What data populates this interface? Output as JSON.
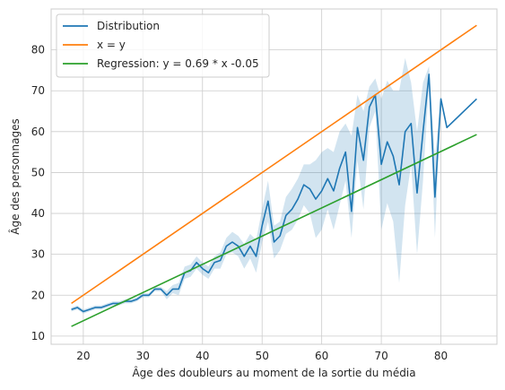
{
  "chart_data": {
    "type": "line",
    "xlabel": "Âge des doubleurs au moment de la sortie du média",
    "ylabel": "Âge des personnages",
    "xlim": [
      14.6,
      89.4
    ],
    "ylim": [
      8.0,
      90.0
    ],
    "xticks": [
      20,
      30,
      40,
      50,
      60,
      70,
      80
    ],
    "yticks": [
      10,
      20,
      30,
      40,
      50,
      60,
      70,
      80
    ],
    "grid": true,
    "legend": {
      "position": "top-left"
    },
    "series": [
      {
        "name": "Distribution",
        "color": "#1f77b4",
        "x": [
          18,
          19,
          20,
          21,
          22,
          23,
          24,
          25,
          26,
          27,
          28,
          29,
          30,
          31,
          32,
          33,
          34,
          35,
          36,
          37,
          38,
          39,
          40,
          41,
          42,
          43,
          44,
          45,
          46,
          47,
          48,
          49,
          50,
          51,
          52,
          53,
          54,
          55,
          56,
          57,
          58,
          59,
          60,
          61,
          62,
          63,
          64,
          65,
          66,
          67,
          68,
          69,
          70,
          71,
          72,
          73,
          74,
          75,
          76,
          77,
          78,
          79,
          80,
          81,
          86
        ],
        "y": [
          16.5,
          17.0,
          16.0,
          16.5,
          17.0,
          17.0,
          17.5,
          18.0,
          18.0,
          18.5,
          18.5,
          19.0,
          20.0,
          20.0,
          21.5,
          21.5,
          20.0,
          21.5,
          21.5,
          25.5,
          26.0,
          28.0,
          26.5,
          25.5,
          28.0,
          28.5,
          32.0,
          33.0,
          32.0,
          29.5,
          32.0,
          29.5,
          37.0,
          43.0,
          33.0,
          34.5,
          39.5,
          41.0,
          43.5,
          47.0,
          46.0,
          43.5,
          45.5,
          48.5,
          45.5,
          51.0,
          55.0,
          40.5,
          61.0,
          53.0,
          66.0,
          69.0,
          52.0,
          57.5,
          54.0,
          47.0,
          60.0,
          62.0,
          45.0,
          60.0,
          74.0,
          44.0,
          68.0,
          61.0,
          68.0
        ],
        "band_upper": [
          17.0,
          17.5,
          16.5,
          17.0,
          17.5,
          17.5,
          18.0,
          18.5,
          18.5,
          19.0,
          19.0,
          19.5,
          20.5,
          20.5,
          22.0,
          22.0,
          21.0,
          22.5,
          23.0,
          27.0,
          27.5,
          29.5,
          28.0,
          27.0,
          29.5,
          30.5,
          34.0,
          35.5,
          34.5,
          32.5,
          35.0,
          33.5,
          41.0,
          48.0,
          37.0,
          38.0,
          44.0,
          46.0,
          48.5,
          52.0,
          52.0,
          53.0,
          55.0,
          56.0,
          55.0,
          60.0,
          62.0,
          59.0,
          69.0,
          65.0,
          71.0,
          73.0,
          68.0,
          72.5,
          70.0,
          70.0,
          78.0,
          72.0,
          60.0,
          72.0,
          76.0,
          54.0,
          68.0,
          61.0,
          68.0
        ],
        "band_lower": [
          16.0,
          16.5,
          15.5,
          16.0,
          16.5,
          16.5,
          17.0,
          17.5,
          17.5,
          18.0,
          18.0,
          18.5,
          19.5,
          19.5,
          21.0,
          21.0,
          19.0,
          20.5,
          20.0,
          24.0,
          24.5,
          26.5,
          25.0,
          24.0,
          26.5,
          26.5,
          30.0,
          30.5,
          29.5,
          26.5,
          29.0,
          25.5,
          33.0,
          38.0,
          29.0,
          31.0,
          35.0,
          36.0,
          38.5,
          42.0,
          40.0,
          34.0,
          36.0,
          41.0,
          36.0,
          42.0,
          48.0,
          34.0,
          53.0,
          41.0,
          61.0,
          65.0,
          36.0,
          42.5,
          38.0,
          23.0,
          42.0,
          52.0,
          30.0,
          48.0,
          72.0,
          34.0,
          68.0,
          61.0,
          68.0
        ]
      },
      {
        "name": "x = y",
        "color": "#ff7f0e",
        "x": [
          18,
          86
        ],
        "y": [
          18,
          86
        ]
      },
      {
        "name": "Regression: y = 0.69 * x -0.05",
        "color": "#2ca02c",
        "x": [
          18,
          86
        ],
        "y": [
          12.37,
          59.29
        ]
      }
    ]
  }
}
